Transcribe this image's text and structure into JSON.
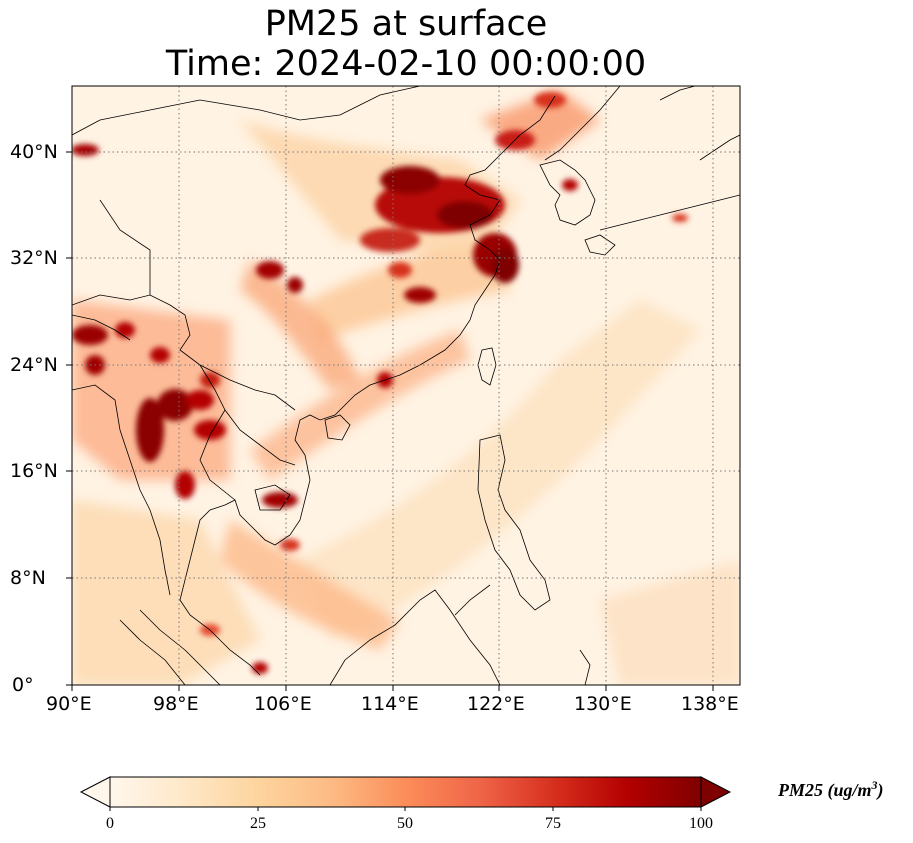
{
  "title": {
    "line1": "PM25 at surface",
    "line2": "Time: 2024-02-10 00:00:00"
  },
  "map": {
    "lon_range": [
      90,
      140
    ],
    "lat_range": [
      0,
      45
    ],
    "lon_ticks": [
      "90°E",
      "98°E",
      "106°E",
      "114°E",
      "122°E",
      "130°E",
      "138°E"
    ],
    "lat_ticks": [
      "0°",
      "8°N",
      "16°N",
      "24°N",
      "32°N",
      "40°N"
    ],
    "field": "PM25",
    "colormap": "OrRd",
    "gridlines": "dotted"
  },
  "colorbar": {
    "min": 0,
    "max": 100,
    "ticks": [
      "0",
      "25",
      "50",
      "75",
      "100"
    ],
    "label_main": "PM25 (ug/m",
    "label_sup": "3",
    "label_end": ")",
    "extend": "both",
    "colors": [
      "#fff7ec",
      "#fee8c8",
      "#fdd49e",
      "#fdbb84",
      "#fc8d59",
      "#ef6548",
      "#d7301f",
      "#b30000",
      "#7f0000"
    ]
  }
}
